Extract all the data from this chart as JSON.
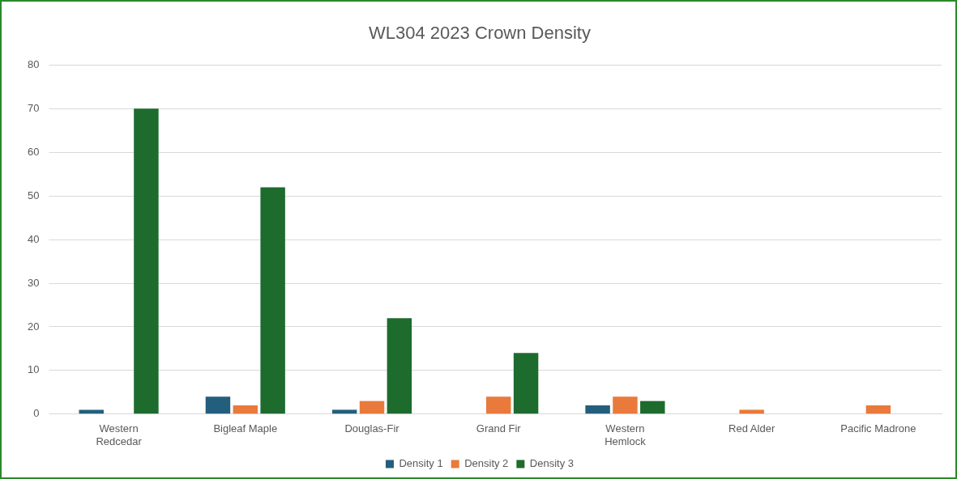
{
  "chart_data": {
    "type": "bar",
    "title": "WL304 2023 Crown Density",
    "categories": [
      "Western Redcedar",
      "Bigleaf Maple",
      "Douglas-Fir",
      "Grand Fir",
      "Western Hemlock",
      "Red Alder",
      "Pacific Madrone"
    ],
    "series": [
      {
        "name": "Density 1",
        "color": "#235f7d",
        "values": [
          1,
          4,
          1,
          0,
          2,
          0,
          0
        ]
      },
      {
        "name": "Density 2",
        "color": "#e97a3b",
        "values": [
          0,
          2,
          3,
          4,
          4,
          1,
          2
        ]
      },
      {
        "name": "Density 3",
        "color": "#1e6b2e",
        "values": [
          70,
          52,
          22,
          14,
          3,
          0,
          0
        ]
      }
    ],
    "ylim": [
      0,
      80
    ],
    "yticks": [
      0,
      10,
      20,
      30,
      40,
      50,
      60,
      70,
      80
    ],
    "grid": "y",
    "legend": "bottom"
  }
}
